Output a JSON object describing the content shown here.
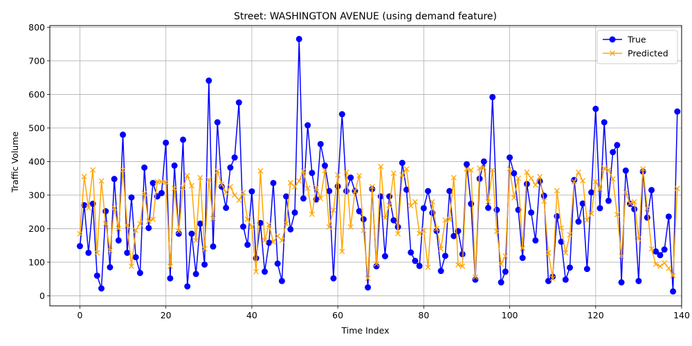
{
  "chart_data": {
    "type": "line",
    "title": "Street: WASHINGTON AVENUE (using demand feature)",
    "xlabel": "Time Index",
    "ylabel": "Traffic Volume",
    "xlim": [
      -7,
      140
    ],
    "ylim": [
      -30,
      805
    ],
    "xticks": [
      0,
      20,
      40,
      60,
      80,
      100,
      120,
      140
    ],
    "yticks": [
      0,
      100,
      200,
      300,
      400,
      500,
      600,
      700,
      800
    ],
    "grid": true,
    "legend_position": "upper right",
    "series": [
      {
        "name": "True",
        "color": "#0000ff",
        "marker": "circle",
        "values": [
          148,
          270,
          128,
          274,
          60,
          22,
          252,
          85,
          348,
          165,
          480,
          128,
          293,
          115,
          68,
          382,
          202,
          336,
          296,
          306,
          456,
          52,
          388,
          185,
          465,
          28,
          185,
          65,
          215,
          93,
          641,
          147,
          517,
          325,
          262,
          382,
          412,
          576,
          206,
          152,
          311,
          112,
          217,
          72,
          158,
          336,
          96,
          44,
          296,
          198,
          248,
          765,
          290,
          508,
          366,
          287,
          452,
          388,
          312,
          52,
          326,
          541,
          312,
          352,
          312,
          252,
          228,
          25,
          318,
          88,
          296,
          118,
          296,
          225,
          205,
          396,
          316,
          129,
          104,
          89,
          261,
          312,
          247,
          193,
          74,
          119,
          312,
          178,
          193,
          124,
          392,
          274,
          48,
          349,
          400,
          262,
          592,
          256,
          40,
          72,
          412,
          365,
          256,
          113,
          333,
          248,
          165,
          341,
          298,
          44,
          57,
          237,
          161,
          48,
          84,
          345,
          221,
          275,
          80,
          308,
          557,
          261,
          517,
          283,
          428,
          449,
          40,
          373,
          274,
          258,
          44,
          370,
          233,
          315,
          132,
          121,
          138,
          236,
          13,
          549
        ]
      },
      {
        "name": "Predicted",
        "color": "#ffa500",
        "marker": "x",
        "values": [
          185,
          355,
          262,
          375,
          128,
          342,
          215,
          135,
          262,
          200,
          375,
          210,
          88,
          195,
          215,
          305,
          222,
          228,
          340,
          340,
          338,
          88,
          320,
          192,
          322,
          358,
          328,
          165,
          352,
          140,
          346,
          230,
          372,
          332,
          308,
          325,
          300,
          285,
          308,
          228,
          205,
          72,
          372,
          165,
          212,
          160,
          178,
          165,
          215,
          337,
          325,
          342,
          372,
          320,
          243,
          322,
          290,
          373,
          205,
          255,
          360,
          132,
          368,
          205,
          312,
          358,
          195,
          52,
          325,
          95,
          385,
          232,
          270,
          365,
          185,
          360,
          378,
          268,
          280,
          186,
          195,
          85,
          280,
          200,
          140,
          225,
          228,
          352,
          92,
          88,
          378,
          375,
          56,
          380,
          382,
          280,
          375,
          192,
          95,
          118,
          378,
          292,
          350,
          142,
          368,
          350,
          330,
          355,
          282,
          128,
          52,
          313,
          202,
          128,
          182,
          340,
          368,
          343,
          225,
          245,
          340,
          318,
          380,
          375,
          348,
          242,
          118,
          308,
          275,
          280,
          170,
          378,
          260,
          140,
          94,
          88,
          98,
          82,
          60,
          320
        ]
      }
    ]
  }
}
